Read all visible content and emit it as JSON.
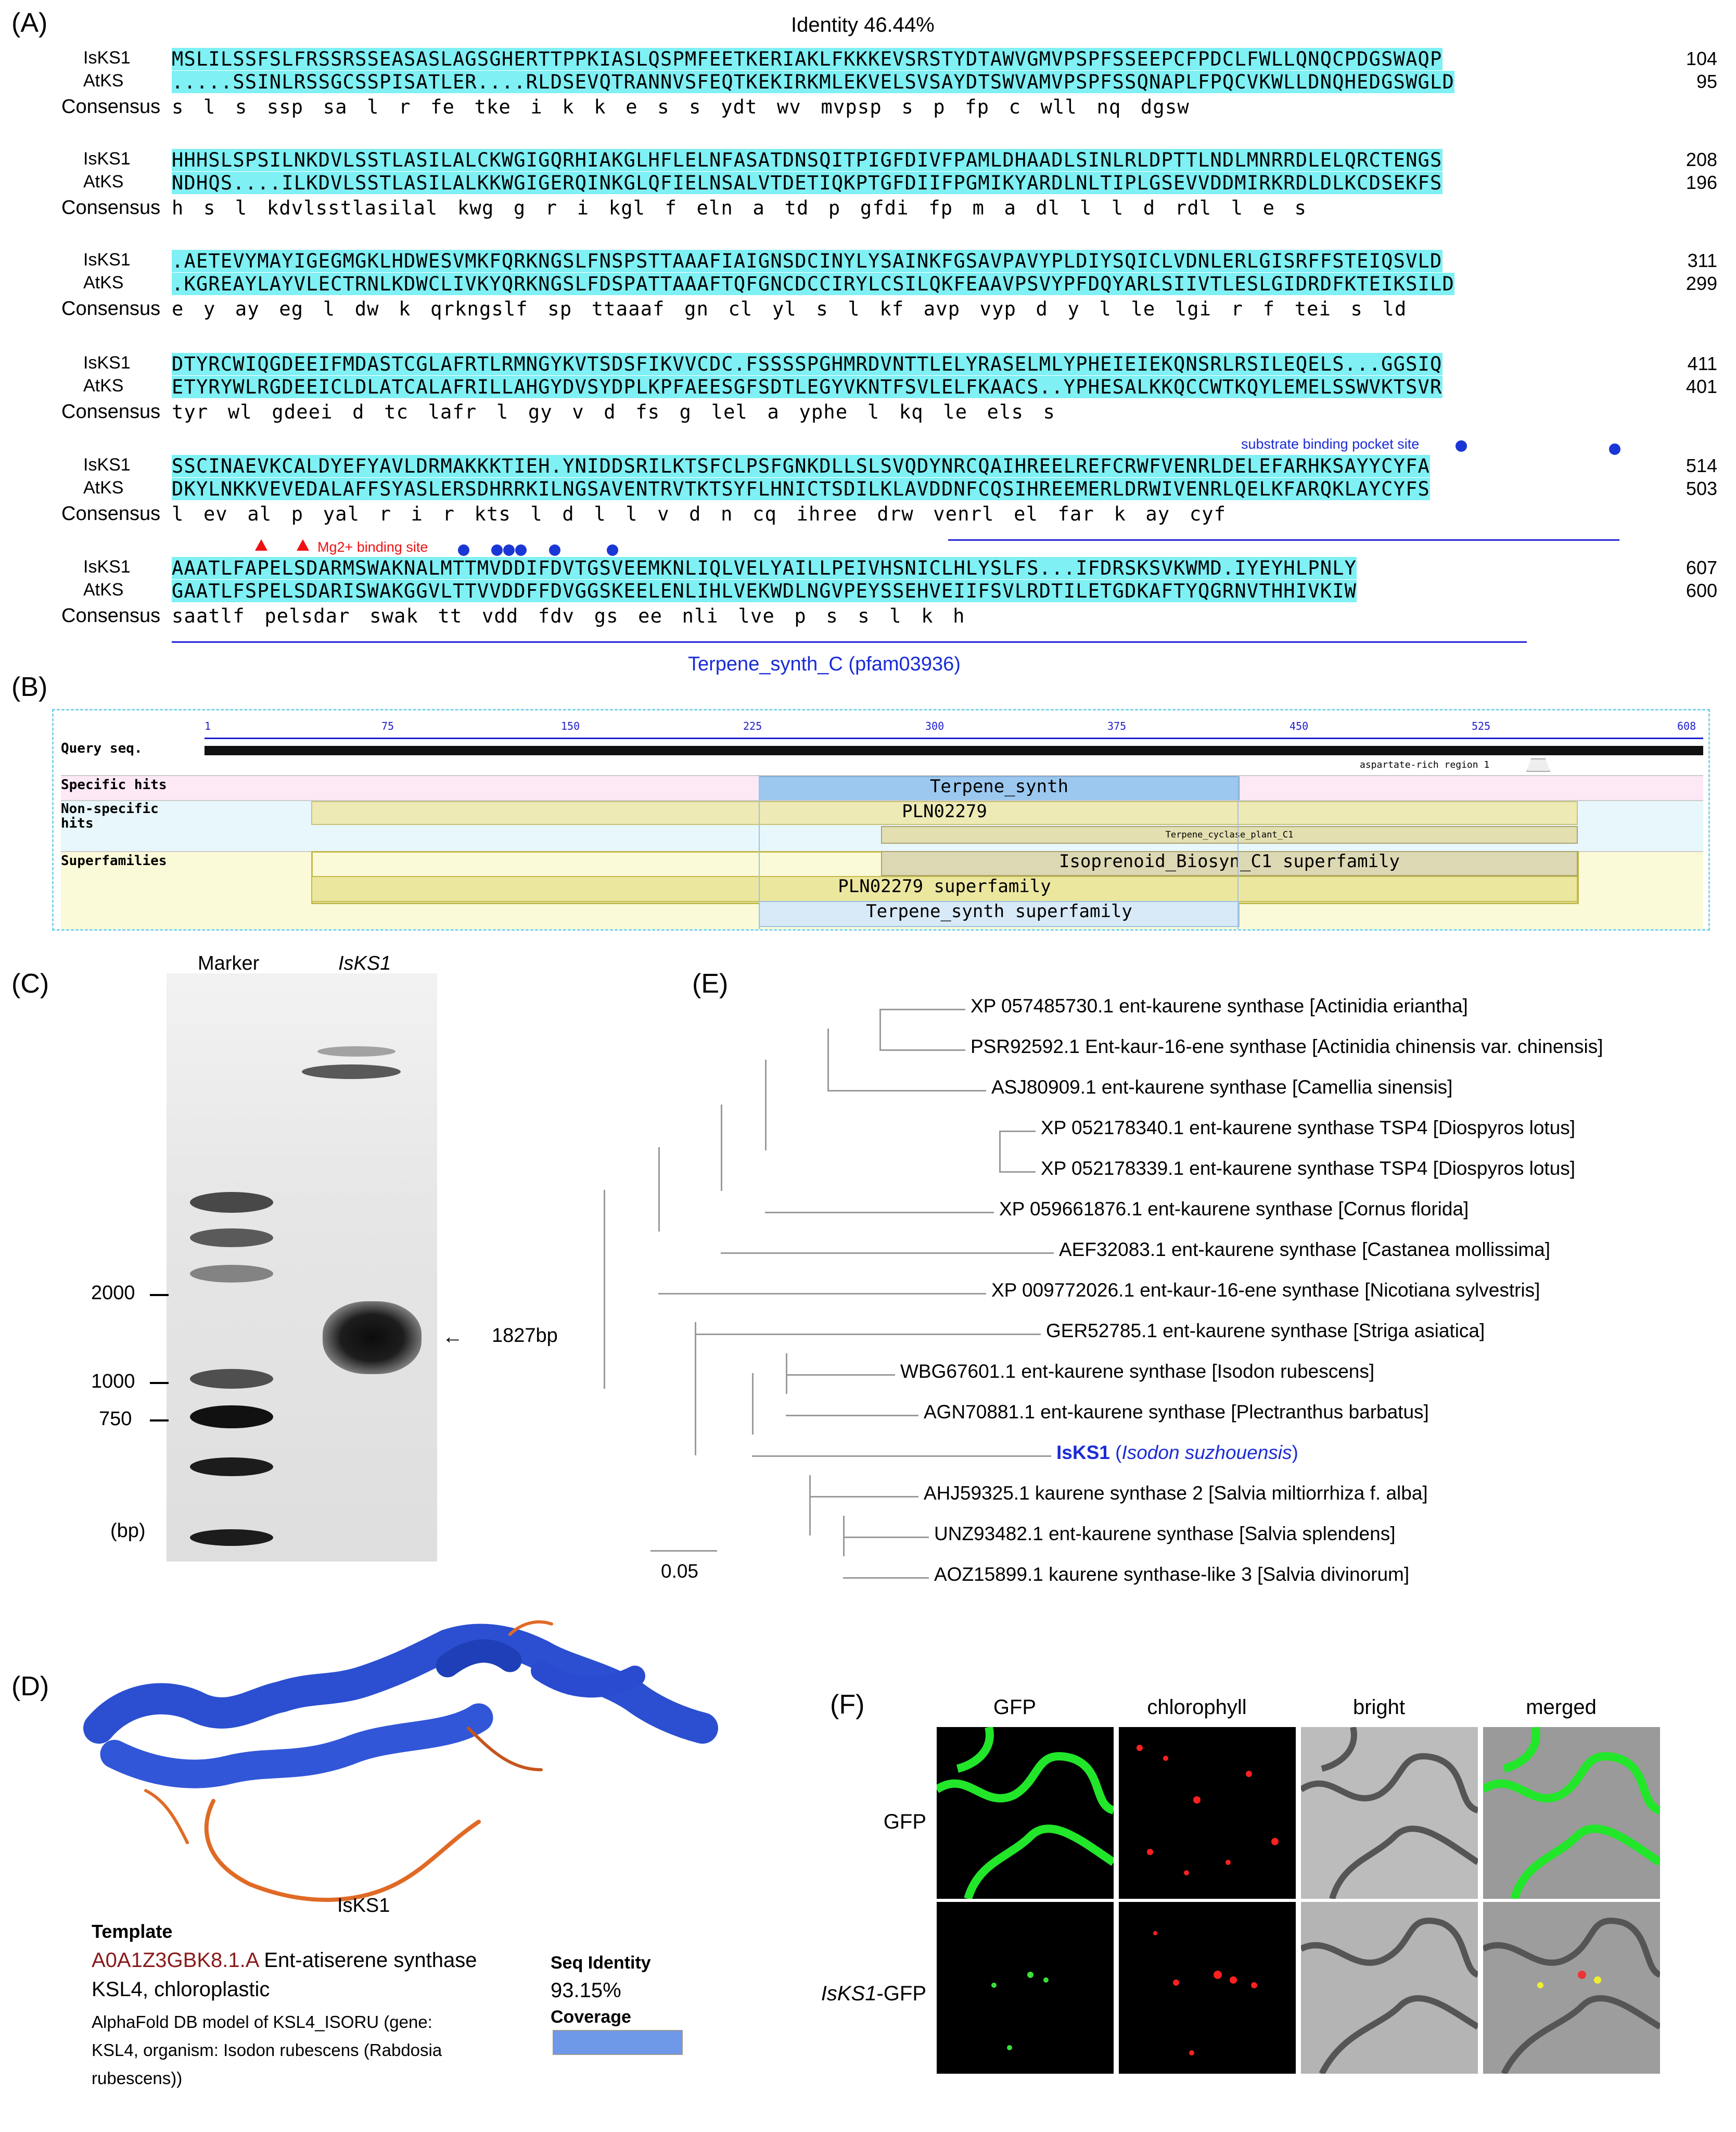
{
  "panels": {
    "a": "(A)",
    "b": "(B)",
    "c": "(C)",
    "d": "(D)",
    "e": "(E)",
    "f": "(F)"
  },
  "alignment": {
    "identity": "Identity 46.44%",
    "names": {
      "seq1": "IsKS1",
      "seq2": "AtKS",
      "consensus": "Consensus"
    },
    "blocks": [
      {
        "s1": "MSLILSSFSLFRSSRSSEASASLAGSGHERTTPPKIASLQSPMFEETKERIAKLFKKKEVSRSTYDTAWVGMVPSPFSSEEPCFPDCLFWLLQNQCPDGSWAQP",
        "s2": ".....SSINLRSSGCSSPISATLER....RLDSEVQTRANNVSFEQTKEKIRKMLEKVELSVSAYDTSWVAMVPSPFSSQNAPLFPQCVKWLLDNQHEDGSWGLD",
        "cons": "s l s ssp sa l r fe tke i k k e s s ydt wv mvpsp s p fp c wll nq dgsw",
        "n1": "104",
        "n2": "95"
      },
      {
        "s1": "HHHSLSPSILNKDVLSSTLASILALCKWGIGQRHIAKGLHFLELNFASATDNSQITPIGFDIVFPAMLDHAADLSINLRLDPTTLNDLMNRRDLELQRCTENGS",
        "s2": "NDHQS....ILKDVLSSTLASILALKKWGIGERQINKGLQFIELNSALVTDETIQKPTGFDIIFPGMIKYARDLNLTIPLGSEVVDDMIRKRDLDLKCDSEKFS",
        "cons": "h s l kdvlsstlasilal kwg g r i kgl f eln a td p gfdi fp m a dl l l d rdl l e s",
        "n1": "208",
        "n2": "196"
      },
      {
        "s1": ".AETEVYMAYIGEGMGKLHDWESVMKFQRKNGSLFNSPSTTAAAFIAIGNSDCINYLYSAINKFGSAVPAVYPLDIYSQICLVDNLERLGISRFFSTEIQSVLD",
        "s2": ".KGREAYLAYVLECTRNLKDWCLIVKYQRKNGSLFDSPATTAAAFTQFGNCDCCIRYLCSILQKFEAAVPSVYPFDQYARLSIIVTLESLGIDRDFKTEIKSILD",
        "cons": "e y ay eg l dw k qrkngslf sp ttaaaf gn cl yl s l kf avp vyp d y l le lgi r f tei s ld",
        "n1": "311",
        "n2": "299"
      },
      {
        "s1": "DTYRCWIQGDEEIFMDASTCGLAFRTLRMNGYKVTSDSFIKVVCDC.FSSSSPGHMRDVNTTLELYRASELMLYPHEIEIEKQNSRLRSILEQELS...GGSIQ",
        "s2": "ETYRYWLRGDEEICLDLATCALAFRILLAHGYDVSYDPLKPFAEESGFSDTLEGYVKNTFSVLELFKAACS..YPHESALKKQCCWTKQYLEMELSSWVKTSVR",
        "cons": "tyr wl gdeei d tc lafr l gy v d fs g lel a yphe l kq le els s",
        "n1": "411",
        "n2": "401"
      },
      {
        "s1": "SSCINAEVKCALDYEFYAVLDRMAKKKTIEH.YNIDDSRILKTSFCLPSFGNKDLLSLSVQDYNRCQAIHREELREFCRWFVENRLDELEFARHKSAYYCYFA",
        "s2": "DKYLNKKVEVEDALAFFSYASLERSDHRRKILNGSAVENTRVTKTSYFLHNICTSDILKLAVDDNFCQSIHREEMERLDRWIVENRLQELKFARQKLAYCYFS",
        "cons": "l ev al p yal r i r kts l d l l v d n cq ihree drw venrl el far k ay cyf",
        "n1": "514",
        "n2": "503"
      },
      {
        "s1": "AAATLFAPELSDARMSWAKNALMTTMVDDIFDVTGSVEEMKNLIQLVELYAILLPEIVHSNICLHLYSLFS...IFDRSKSVKWMD.IYEYHLPNLY",
        "s2": "GAATLFSPELSDARISWAKGGVLTTVVDDFFDVGGSKEELENLIHLVEKWDLNGVPEYSSEHVEIIFSVLRDTILETGDKAFTYQGRNVTHHIVKIW",
        "cons": "saatlf pelsdar swak tt vdd fdv gs ee nli lve p s s l k h",
        "n1": "607",
        "n2": "600"
      }
    ],
    "substrate_site": "substrate binding pocket site",
    "mg_site": "Mg2+ binding site",
    "domain_name": "Terpene_synth_C (pfam03936)"
  },
  "cdd": {
    "query": "Query seq.",
    "ticks": [
      "1",
      "75",
      "150",
      "225",
      "300",
      "375",
      "450",
      "525",
      "608"
    ],
    "aspartate": "aspartate-rich region",
    "aspartate_num": "1",
    "labels": {
      "specific": "Specific hits",
      "nonspecific1": "Non-specific",
      "nonspecific2": "hits",
      "super": "Superfamilies"
    },
    "hits": {
      "terpene": "Terpene_synth",
      "pln": "PLN02279",
      "cyclase": "Terpene_cyclase_plant_C1",
      "iso_super": "Isoprenoid_Biosyn_C1 superfamily",
      "pln_super": "PLN02279 superfamily",
      "terp_super": "Terpene_synth superfamily"
    }
  },
  "gel": {
    "marker": "Marker",
    "lane": "IsKS1",
    "sizes": [
      "2000",
      "1000",
      "750"
    ],
    "unit": "(bp)",
    "band": "1827bp"
  },
  "structure": {
    "name": "IsKS1",
    "template_label": "Template",
    "template_id": "A0A1Z3GBK8.1.A",
    "template_title1": "Ent-atiserene synthase",
    "template_title2": "KSL4, chloroplastic",
    "desc1": "AlphaFold DB model of KSL4_ISORU (gene:",
    "desc2": "KSL4, organism: Isodon rubescens (Rabdosia",
    "desc3": "rubescens))",
    "seqid_label": "Seq Identity",
    "seqid": "93.15%",
    "coverage_label": "Coverage",
    "coverage": 1.0
  },
  "tree": {
    "leaves": [
      "XP 057485730.1 ent-kaurene synthase [Actinidia eriantha]",
      "PSR92592.1 Ent-kaur-16-ene synthase [Actinidia chinensis var. chinensis]",
      "ASJ80909.1 ent-kaurene synthase [Camellia sinensis]",
      "XP 052178340.1 ent-kaurene synthase TSP4 [Diospyros lotus]",
      "XP 052178339.1 ent-kaurene synthase TSP4 [Diospyros lotus]",
      "XP 059661876.1 ent-kaurene synthase [Cornus florida]",
      "AEF32083.1 ent-kaurene synthase [Castanea mollissima]",
      "XP 009772026.1 ent-kaur-16-ene synthase [Nicotiana sylvestris]",
      "GER52785.1  ent-kaurene synthase [Striga asiatica]",
      "WBG67601.1 ent-kaurene synthase [Isodon rubescens]",
      "AGN70881.1 ent-kaurene synthase [Plectranthus barbatus]",
      "",
      "AHJ59325.1  kaurene synthase 2 [Salvia miltiorrhiza f. alba]",
      "UNZ93482.1 ent-kaurene synthase [Salvia splendens]",
      "AOZ15899.1 kaurene synthase-like 3 [Salvia divinorum]"
    ],
    "highlight_id": "IsKS1",
    "highlight_species": "(Isodon suzhouensis)",
    "highlight_open": "(",
    "highlight_close": ")",
    "scale": "0.05",
    "highlight_color": "#1a2bd6"
  },
  "micro": {
    "cols": [
      "GFP",
      "chlorophyll",
      "bright",
      "merged"
    ],
    "rows": [
      "GFP",
      "IsKS1-GFP"
    ],
    "row2_italic": "IsKS1",
    "row2_rest": "-GFP"
  }
}
